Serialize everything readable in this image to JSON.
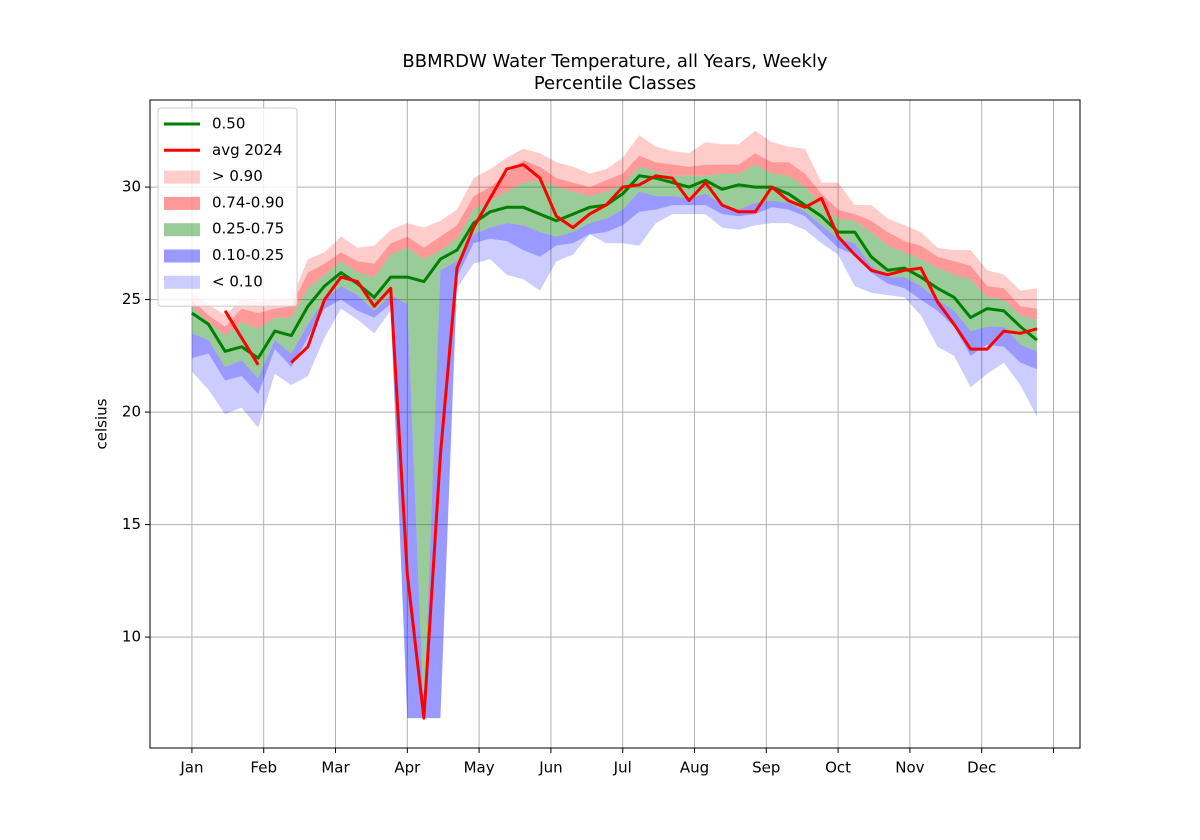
{
  "chart_data": {
    "type": "line",
    "title": "BBMRDW Water Temperature, all Years, Weekly",
    "subtitle": "Percentile Classes",
    "y_label": "celsius",
    "x": [
      0,
      1,
      2,
      3,
      4,
      5,
      6,
      7,
      8,
      9,
      10,
      11,
      12,
      13,
      14,
      15,
      16,
      17,
      18,
      19,
      20,
      21,
      22,
      23,
      24,
      25,
      26,
      27,
      28,
      29,
      30,
      31,
      32,
      33,
      34,
      35,
      36,
      37,
      38,
      39,
      40,
      41,
      42,
      43,
      44,
      45,
      46,
      47,
      48,
      49,
      50,
      51
    ],
    "xlim": [
      -2.53,
      53.6
    ],
    "xticks": [
      {
        "value": 0,
        "label": "Jan"
      },
      {
        "value": 4.333,
        "label": "Feb"
      },
      {
        "value": 8.667,
        "label": "Mar"
      },
      {
        "value": 13,
        "label": "Apr"
      },
      {
        "value": 17.333,
        "label": "May"
      },
      {
        "value": 21.667,
        "label": "Jun"
      },
      {
        "value": 26,
        "label": "Jul"
      },
      {
        "value": 30.333,
        "label": "Aug"
      },
      {
        "value": 34.667,
        "label": "Sep"
      },
      {
        "value": 39,
        "label": "Oct"
      },
      {
        "value": 43.333,
        "label": "Nov"
      },
      {
        "value": 47.667,
        "label": "Dec"
      },
      {
        "value": 52,
        "label": null
      }
    ],
    "ylim": [
      5.07,
      33.87
    ],
    "yticks": [
      10,
      15,
      20,
      25,
      30
    ],
    "grid": true,
    "legend": "upper left",
    "series": [
      {
        "name": "0.50",
        "color": "#008000",
        "values": [
          24.4,
          23.9,
          22.7,
          22.9,
          22.4,
          23.6,
          23.4,
          24.7,
          25.6,
          26.2,
          25.7,
          25.1,
          26.0,
          26.0,
          25.8,
          26.8,
          27.2,
          28.4,
          28.9,
          29.1,
          29.1,
          28.8,
          28.5,
          28.8,
          29.1,
          29.2,
          29.7,
          30.5,
          30.4,
          30.2,
          30.0,
          30.3,
          29.9,
          30.1,
          30.0,
          30.0,
          29.7,
          29.2,
          28.7,
          28.0,
          28.0,
          26.9,
          26.3,
          26.4,
          26.0,
          25.5,
          25.1,
          24.2,
          24.6,
          24.5,
          23.8,
          23.2
        ]
      },
      {
        "name": "avg 2024",
        "color": "#ff0000",
        "values": [
          null,
          null,
          24.5,
          23.3,
          22.1,
          null,
          22.2,
          22.9,
          25.0,
          26.0,
          25.8,
          24.7,
          25.5,
          12.8,
          6.4,
          18.1,
          26.4,
          28.2,
          29.5,
          30.8,
          31.0,
          30.4,
          28.7,
          28.2,
          28.8,
          29.2,
          30.0,
          30.1,
          30.5,
          30.4,
          29.4,
          30.2,
          29.2,
          28.9,
          28.9,
          30.0,
          29.4,
          29.1,
          29.5,
          27.8,
          27.0,
          26.3,
          26.1,
          26.3,
          26.4,
          24.9,
          23.9,
          22.8,
          22.8,
          23.6,
          23.5,
          23.7
        ]
      }
    ],
    "bands": [
      {
        "name": "> 0.90",
        "color": "#ff0000",
        "alpha": 0.2,
        "upper": [
          25.3,
          24.8,
          24.3,
          25.0,
          24.9,
          25.0,
          25.0,
          26.8,
          27.1,
          27.8,
          27.3,
          27.4,
          28.1,
          28.4,
          28.2,
          28.5,
          29.0,
          30.4,
          30.8,
          31.3,
          31.7,
          31.5,
          31.1,
          30.9,
          30.6,
          30.8,
          31.3,
          32.3,
          31.8,
          31.6,
          31.5,
          32.0,
          31.9,
          31.9,
          32.5,
          32.0,
          31.8,
          31.7,
          30.2,
          30.2,
          29.2,
          29.2,
          28.6,
          28.3,
          28.0,
          27.3,
          27.2,
          27.2,
          26.3,
          26.1,
          25.4,
          25.5
        ],
        "lower": [
          25.0,
          24.3,
          23.8,
          24.6,
          24.4,
          24.6,
          24.7,
          26.2,
          26.6,
          27.1,
          26.7,
          26.6,
          27.5,
          27.8,
          27.3,
          27.8,
          28.3,
          29.6,
          30.0,
          30.6,
          31.2,
          30.9,
          30.4,
          30.2,
          30.0,
          30.3,
          30.6,
          31.4,
          31.1,
          31.0,
          30.9,
          31.0,
          31.0,
          31.0,
          31.5,
          31.1,
          31.1,
          30.6,
          29.7,
          29.0,
          28.8,
          28.5,
          28.0,
          27.6,
          27.4,
          26.9,
          26.7,
          26.5,
          25.6,
          25.5,
          24.7,
          24.6
        ]
      },
      {
        "name": "0.74-0.90",
        "color": "#ff0000",
        "alpha": 0.4,
        "upper": [
          25.0,
          24.3,
          23.8,
          24.6,
          24.4,
          24.6,
          24.7,
          26.2,
          26.6,
          27.1,
          26.7,
          26.6,
          27.5,
          27.8,
          27.3,
          27.8,
          28.3,
          29.6,
          30.0,
          30.6,
          31.2,
          30.9,
          30.4,
          30.2,
          30.0,
          30.3,
          30.6,
          31.4,
          31.1,
          31.0,
          30.9,
          31.0,
          31.0,
          31.0,
          31.5,
          31.1,
          31.1,
          30.6,
          29.7,
          29.0,
          28.8,
          28.5,
          28.0,
          27.6,
          27.4,
          26.9,
          26.7,
          26.5,
          25.6,
          25.5,
          24.7,
          24.6
        ],
        "lower": [
          24.7,
          24.0,
          23.4,
          24.0,
          23.7,
          24.2,
          24.2,
          25.5,
          26.1,
          26.7,
          26.2,
          26.0,
          27.0,
          27.3,
          26.8,
          27.2,
          27.7,
          29.0,
          29.4,
          29.8,
          30.2,
          30.3,
          30.0,
          29.8,
          29.6,
          29.8,
          30.1,
          30.9,
          30.7,
          30.5,
          30.5,
          30.5,
          30.6,
          30.6,
          31.0,
          30.6,
          30.5,
          30.0,
          29.2,
          28.6,
          28.5,
          28.0,
          27.4,
          27.1,
          26.8,
          26.4,
          26.1,
          25.9,
          25.1,
          25.0,
          24.3,
          24.1
        ]
      },
      {
        "name": "0.25-0.75",
        "color": "#008000",
        "alpha": 0.4,
        "upper": [
          24.7,
          24.0,
          23.4,
          24.0,
          23.7,
          24.2,
          24.2,
          25.5,
          26.1,
          26.7,
          26.2,
          26.0,
          27.0,
          27.3,
          26.8,
          27.2,
          27.7,
          29.0,
          29.4,
          29.8,
          30.2,
          30.3,
          30.0,
          29.8,
          29.6,
          29.8,
          30.1,
          30.9,
          30.7,
          30.5,
          30.5,
          30.5,
          30.6,
          30.6,
          31.0,
          30.6,
          30.5,
          30.0,
          29.2,
          28.6,
          28.5,
          28.0,
          27.4,
          27.1,
          26.8,
          26.4,
          26.1,
          25.9,
          25.1,
          25.0,
          24.3,
          24.1
        ],
        "lower": [
          23.5,
          23.2,
          22.0,
          22.3,
          21.5,
          23.2,
          22.6,
          23.9,
          25.0,
          25.6,
          25.2,
          24.5,
          25.2,
          24.8,
          6.5,
          26.3,
          26.7,
          27.9,
          28.2,
          28.4,
          28.3,
          28.0,
          27.8,
          28.0,
          28.4,
          28.6,
          29.0,
          29.8,
          29.6,
          29.6,
          29.5,
          29.7,
          29.2,
          29.0,
          29.3,
          29.4,
          29.3,
          28.9,
          28.3,
          27.7,
          27.5,
          26.5,
          26.0,
          26.0,
          25.6,
          25.0,
          24.5,
          23.6,
          23.8,
          23.8,
          23.0,
          22.7
        ]
      },
      {
        "name": "0.10-0.25",
        "color": "#0000ff",
        "alpha": 0.4,
        "upper": [
          23.5,
          23.2,
          22.0,
          22.3,
          21.5,
          23.2,
          22.6,
          23.9,
          25.0,
          25.6,
          25.2,
          24.5,
          25.2,
          24.8,
          6.5,
          26.3,
          26.7,
          27.9,
          28.2,
          28.4,
          28.3,
          28.0,
          27.8,
          28.0,
          28.4,
          28.6,
          29.0,
          29.8,
          29.6,
          29.6,
          29.5,
          29.7,
          29.2,
          29.0,
          29.3,
          29.4,
          29.3,
          28.9,
          28.3,
          27.7,
          27.5,
          26.5,
          26.0,
          26.0,
          25.6,
          25.0,
          24.5,
          23.6,
          23.8,
          23.8,
          23.0,
          22.7
        ],
        "lower": [
          22.4,
          22.6,
          21.4,
          21.6,
          20.8,
          22.8,
          22.0,
          23.3,
          24.6,
          25.0,
          24.5,
          24.2,
          24.8,
          6.4,
          6.4,
          6.4,
          26.0,
          27.5,
          27.7,
          27.6,
          27.2,
          26.9,
          27.4,
          27.5,
          27.9,
          28.0,
          28.3,
          28.9,
          29.0,
          29.2,
          29.2,
          29.2,
          28.8,
          28.7,
          28.8,
          29.1,
          29.0,
          28.7,
          28.0,
          27.3,
          27.0,
          26.2,
          25.7,
          25.5,
          25.0,
          24.5,
          23.8,
          22.5,
          23.0,
          22.9,
          22.2,
          21.9
        ]
      },
      {
        "name": "< 0.10",
        "color": "#0000ff",
        "alpha": 0.2,
        "upper": [
          22.4,
          22.6,
          21.4,
          21.6,
          20.8,
          22.8,
          22.0,
          23.3,
          24.6,
          25.0,
          24.5,
          24.2,
          24.8,
          6.4,
          6.4,
          6.4,
          26.0,
          27.5,
          27.7,
          27.6,
          27.2,
          26.9,
          27.4,
          27.5,
          27.9,
          28.0,
          28.3,
          28.9,
          29.0,
          29.2,
          29.2,
          29.2,
          28.8,
          28.7,
          28.8,
          29.1,
          29.0,
          28.7,
          28.0,
          27.3,
          27.0,
          26.2,
          25.7,
          25.5,
          25.0,
          24.5,
          23.8,
          22.5,
          23.0,
          22.9,
          22.2,
          21.9
        ],
        "lower": [
          21.8,
          21.0,
          19.9,
          20.2,
          19.3,
          21.7,
          21.2,
          21.6,
          23.3,
          24.6,
          24.1,
          23.5,
          24.5,
          6.4,
          6.4,
          6.4,
          25.5,
          26.6,
          26.8,
          26.1,
          25.9,
          25.4,
          26.7,
          27.0,
          27.9,
          27.5,
          27.5,
          27.4,
          28.4,
          28.8,
          28.8,
          28.8,
          28.2,
          28.1,
          28.3,
          28.4,
          28.4,
          28.1,
          27.5,
          27.0,
          25.6,
          25.3,
          25.2,
          25.1,
          24.3,
          22.9,
          22.5,
          21.1,
          21.7,
          22.2,
          21.2,
          19.8
        ]
      }
    ]
  }
}
